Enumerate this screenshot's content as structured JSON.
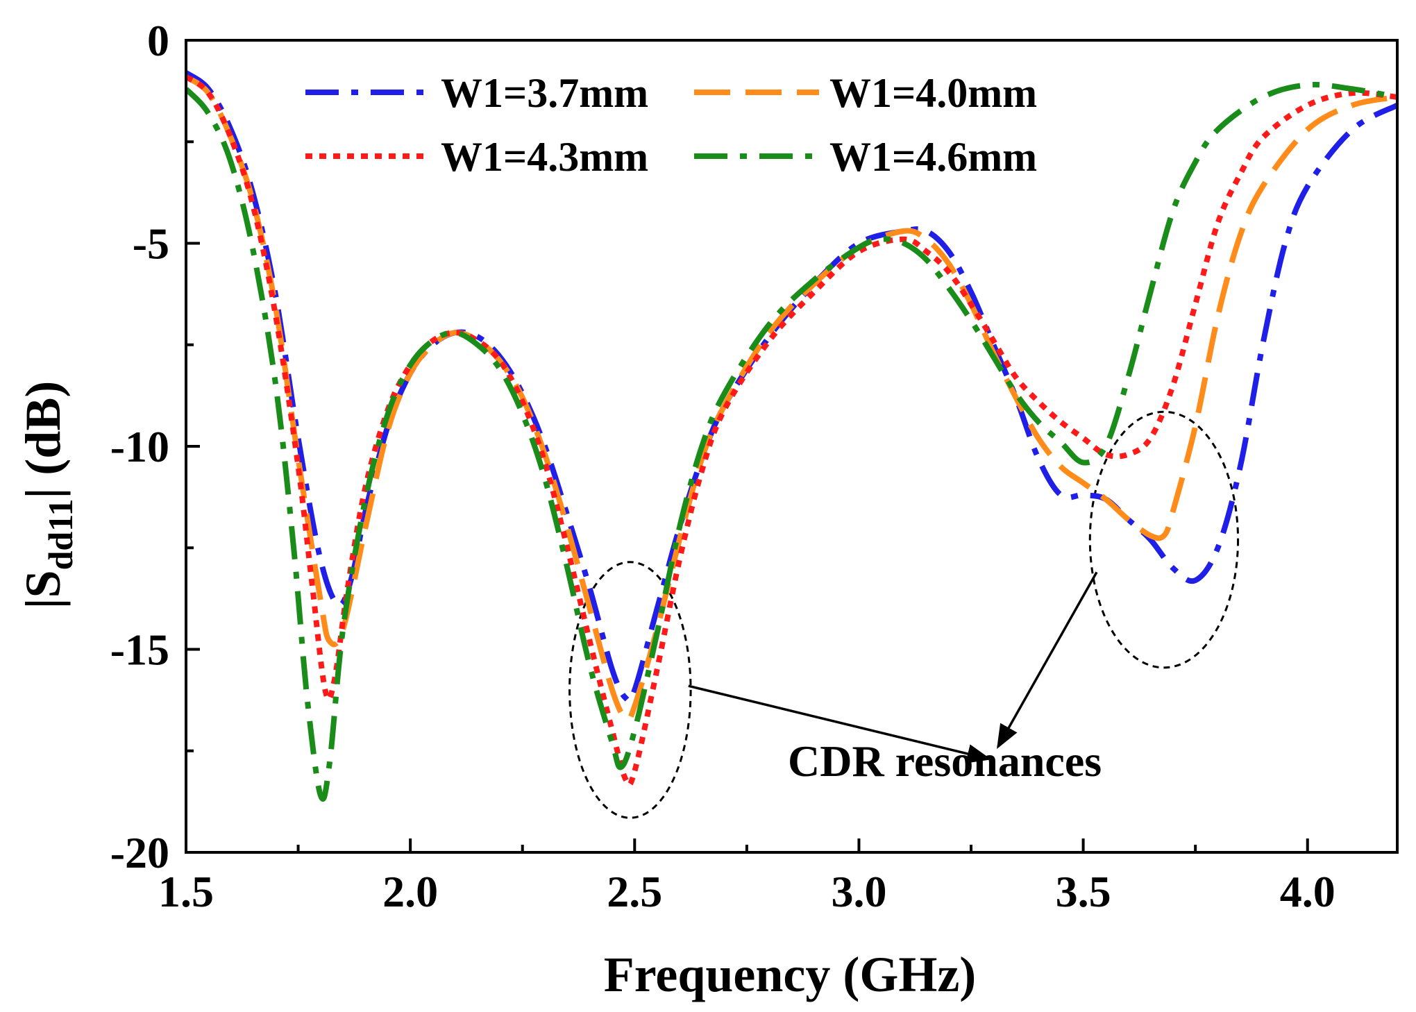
{
  "chart_data": {
    "type": "line",
    "title": "",
    "xlabel": "Frequency (GHz)",
    "ylabel_main": "|S",
    "ylabel_sub": "dd11",
    "ylabel_tail": "| (dB)",
    "xlim": [
      1.5,
      4.2
    ],
    "ylim": [
      -20,
      0
    ],
    "x_ticks": [
      1.5,
      2.0,
      2.5,
      3.0,
      3.5,
      4.0
    ],
    "x_tick_labels": [
      "1.5",
      "2.0",
      "2.5",
      "3.0",
      "3.5",
      "4.0"
    ],
    "x_minor_ticks": [
      1.75,
      2.25,
      2.75,
      3.25,
      3.75
    ],
    "y_ticks": [
      0,
      -5,
      -10,
      -15,
      -20
    ],
    "y_tick_labels": [
      "0",
      "-5",
      "-10",
      "-15",
      "-20"
    ],
    "y_minor_ticks": [
      -2.5,
      -7.5,
      -12.5,
      -17.5
    ],
    "grid": false,
    "legend_position": "top",
    "series": [
      {
        "name": "W1=3.7mm",
        "color": "#1f1fe8",
        "dash": "dash-dot",
        "points": [
          [
            1.5,
            -0.8
          ],
          [
            1.55,
            -1.2
          ],
          [
            1.6,
            -2.2
          ],
          [
            1.65,
            -3.8
          ],
          [
            1.7,
            -6.3
          ],
          [
            1.75,
            -9.8
          ],
          [
            1.8,
            -12.8
          ],
          [
            1.84,
            -13.9
          ],
          [
            1.87,
            -13.2
          ],
          [
            1.9,
            -11.6
          ],
          [
            1.95,
            -9.5
          ],
          [
            2.0,
            -8.2
          ],
          [
            2.05,
            -7.5
          ],
          [
            2.1,
            -7.2
          ],
          [
            2.15,
            -7.3
          ],
          [
            2.2,
            -7.8
          ],
          [
            2.25,
            -8.7
          ],
          [
            2.3,
            -10.0
          ],
          [
            2.35,
            -11.7
          ],
          [
            2.4,
            -13.5
          ],
          [
            2.45,
            -15.5
          ],
          [
            2.48,
            -16.2
          ],
          [
            2.5,
            -16.0
          ],
          [
            2.55,
            -14.0
          ],
          [
            2.6,
            -12.0
          ],
          [
            2.65,
            -10.3
          ],
          [
            2.7,
            -9.0
          ],
          [
            2.8,
            -7.3
          ],
          [
            2.9,
            -6.0
          ],
          [
            3.0,
            -5.0
          ],
          [
            3.1,
            -4.7
          ],
          [
            3.15,
            -4.7
          ],
          [
            3.2,
            -5.2
          ],
          [
            3.25,
            -6.2
          ],
          [
            3.3,
            -7.5
          ],
          [
            3.35,
            -8.8
          ],
          [
            3.4,
            -10.3
          ],
          [
            3.45,
            -11.2
          ],
          [
            3.5,
            -11.2
          ],
          [
            3.55,
            -11.3
          ],
          [
            3.6,
            -11.8
          ],
          [
            3.65,
            -12.3
          ],
          [
            3.7,
            -13.0
          ],
          [
            3.75,
            -13.3
          ],
          [
            3.8,
            -12.5
          ],
          [
            3.85,
            -10.5
          ],
          [
            3.9,
            -7.5
          ],
          [
            3.95,
            -5.0
          ],
          [
            4.0,
            -3.6
          ],
          [
            4.1,
            -2.2
          ],
          [
            4.2,
            -1.6
          ]
        ]
      },
      {
        "name": "W1=4.0mm",
        "color": "#ff8c1a",
        "dash": "dash",
        "points": [
          [
            1.5,
            -0.9
          ],
          [
            1.55,
            -1.3
          ],
          [
            1.6,
            -2.4
          ],
          [
            1.65,
            -4.0
          ],
          [
            1.7,
            -6.6
          ],
          [
            1.75,
            -10.3
          ],
          [
            1.8,
            -13.8
          ],
          [
            1.82,
            -14.8
          ],
          [
            1.85,
            -14.5
          ],
          [
            1.9,
            -12.0
          ],
          [
            1.95,
            -9.6
          ],
          [
            2.0,
            -8.2
          ],
          [
            2.05,
            -7.5
          ],
          [
            2.1,
            -7.2
          ],
          [
            2.15,
            -7.4
          ],
          [
            2.2,
            -7.9
          ],
          [
            2.25,
            -8.8
          ],
          [
            2.3,
            -10.2
          ],
          [
            2.35,
            -12.0
          ],
          [
            2.4,
            -14.0
          ],
          [
            2.45,
            -16.0
          ],
          [
            2.48,
            -16.7
          ],
          [
            2.5,
            -16.4
          ],
          [
            2.55,
            -14.5
          ],
          [
            2.6,
            -12.3
          ],
          [
            2.65,
            -10.3
          ],
          [
            2.7,
            -9.0
          ],
          [
            2.8,
            -7.2
          ],
          [
            2.9,
            -6.0
          ],
          [
            3.0,
            -5.1
          ],
          [
            3.1,
            -4.7
          ],
          [
            3.15,
            -4.9
          ],
          [
            3.2,
            -5.5
          ],
          [
            3.25,
            -6.5
          ],
          [
            3.3,
            -7.7
          ],
          [
            3.35,
            -8.8
          ],
          [
            3.4,
            -9.8
          ],
          [
            3.45,
            -10.5
          ],
          [
            3.5,
            -10.9
          ],
          [
            3.55,
            -11.3
          ],
          [
            3.6,
            -11.8
          ],
          [
            3.65,
            -12.2
          ],
          [
            3.68,
            -12.2
          ],
          [
            3.7,
            -11.6
          ],
          [
            3.75,
            -9.5
          ],
          [
            3.8,
            -6.8
          ],
          [
            3.85,
            -4.8
          ],
          [
            3.9,
            -3.6
          ],
          [
            4.0,
            -2.2
          ],
          [
            4.1,
            -1.6
          ],
          [
            4.2,
            -1.4
          ]
        ]
      },
      {
        "name": "W1=4.3mm",
        "color": "#ff1a1a",
        "dash": "dot",
        "points": [
          [
            1.5,
            -0.9
          ],
          [
            1.55,
            -1.3
          ],
          [
            1.6,
            -2.4
          ],
          [
            1.65,
            -4.1
          ],
          [
            1.7,
            -6.8
          ],
          [
            1.75,
            -10.5
          ],
          [
            1.78,
            -13.3
          ],
          [
            1.81,
            -16.0
          ],
          [
            1.83,
            -15.8
          ],
          [
            1.86,
            -13.5
          ],
          [
            1.9,
            -11.0
          ],
          [
            1.95,
            -9.1
          ],
          [
            2.0,
            -8.0
          ],
          [
            2.05,
            -7.4
          ],
          [
            2.1,
            -7.2
          ],
          [
            2.15,
            -7.4
          ],
          [
            2.2,
            -7.9
          ],
          [
            2.25,
            -8.9
          ],
          [
            2.3,
            -10.4
          ],
          [
            2.35,
            -12.5
          ],
          [
            2.4,
            -14.8
          ],
          [
            2.45,
            -17.0
          ],
          [
            2.48,
            -18.2
          ],
          [
            2.5,
            -18.0
          ],
          [
            2.55,
            -15.5
          ],
          [
            2.6,
            -12.8
          ],
          [
            2.65,
            -10.6
          ],
          [
            2.7,
            -9.1
          ],
          [
            2.8,
            -7.4
          ],
          [
            2.9,
            -6.2
          ],
          [
            3.0,
            -5.2
          ],
          [
            3.1,
            -4.9
          ],
          [
            3.15,
            -5.2
          ],
          [
            3.2,
            -5.7
          ],
          [
            3.25,
            -6.5
          ],
          [
            3.3,
            -7.4
          ],
          [
            3.35,
            -8.3
          ],
          [
            3.4,
            -8.9
          ],
          [
            3.45,
            -9.4
          ],
          [
            3.5,
            -9.8
          ],
          [
            3.55,
            -10.2
          ],
          [
            3.6,
            -10.2
          ],
          [
            3.65,
            -9.8
          ],
          [
            3.7,
            -8.5
          ],
          [
            3.75,
            -6.5
          ],
          [
            3.8,
            -4.5
          ],
          [
            3.85,
            -3.3
          ],
          [
            3.9,
            -2.4
          ],
          [
            4.0,
            -1.6
          ],
          [
            4.1,
            -1.3
          ],
          [
            4.2,
            -1.4
          ]
        ]
      },
      {
        "name": "W1=4.6mm",
        "color": "#1a8c1a",
        "dash": "dash-dot",
        "points": [
          [
            1.5,
            -1.2
          ],
          [
            1.55,
            -1.8
          ],
          [
            1.6,
            -3.0
          ],
          [
            1.65,
            -5.2
          ],
          [
            1.7,
            -8.5
          ],
          [
            1.74,
            -12.5
          ],
          [
            1.77,
            -16.2
          ],
          [
            1.8,
            -18.6
          ],
          [
            1.82,
            -17.8
          ],
          [
            1.85,
            -14.5
          ],
          [
            1.9,
            -11.3
          ],
          [
            1.95,
            -9.2
          ],
          [
            2.0,
            -8.0
          ],
          [
            2.05,
            -7.4
          ],
          [
            2.1,
            -7.2
          ],
          [
            2.15,
            -7.5
          ],
          [
            2.2,
            -8.1
          ],
          [
            2.25,
            -9.2
          ],
          [
            2.3,
            -10.8
          ],
          [
            2.35,
            -13.0
          ],
          [
            2.4,
            -15.4
          ],
          [
            2.45,
            -17.3
          ],
          [
            2.47,
            -17.9
          ],
          [
            2.5,
            -17.0
          ],
          [
            2.55,
            -14.6
          ],
          [
            2.6,
            -12.0
          ],
          [
            2.65,
            -10.0
          ],
          [
            2.7,
            -8.7
          ],
          [
            2.8,
            -7.0
          ],
          [
            2.9,
            -5.9
          ],
          [
            3.0,
            -5.1
          ],
          [
            3.05,
            -4.9
          ],
          [
            3.1,
            -5.0
          ],
          [
            3.15,
            -5.4
          ],
          [
            3.2,
            -6.1
          ],
          [
            3.25,
            -6.9
          ],
          [
            3.3,
            -7.8
          ],
          [
            3.35,
            -8.7
          ],
          [
            3.4,
            -9.4
          ],
          [
            3.45,
            -9.9
          ],
          [
            3.5,
            -10.4
          ],
          [
            3.55,
            -10.0
          ],
          [
            3.6,
            -8.3
          ],
          [
            3.65,
            -6.2
          ],
          [
            3.7,
            -4.2
          ],
          [
            3.75,
            -3.0
          ],
          [
            3.8,
            -2.2
          ],
          [
            3.9,
            -1.4
          ],
          [
            4.0,
            -1.1
          ],
          [
            4.1,
            -1.2
          ],
          [
            4.2,
            -1.4
          ]
        ]
      }
    ],
    "annotations": {
      "text": "CDR resonances",
      "ellipses": [
        {
          "cx": 2.49,
          "cy": -16.0,
          "rx": 0.135,
          "ry": 3.15
        },
        {
          "cx": 3.68,
          "cy": -12.3,
          "rx": 0.165,
          "ry": 3.15
        }
      ],
      "arrows": [
        {
          "from": [
            2.62,
            -15.9
          ],
          "to": [
            3.29,
            -17.7
          ]
        },
        {
          "from": [
            3.53,
            -13.1
          ],
          "to": [
            3.31,
            -17.4
          ]
        }
      ]
    }
  }
}
